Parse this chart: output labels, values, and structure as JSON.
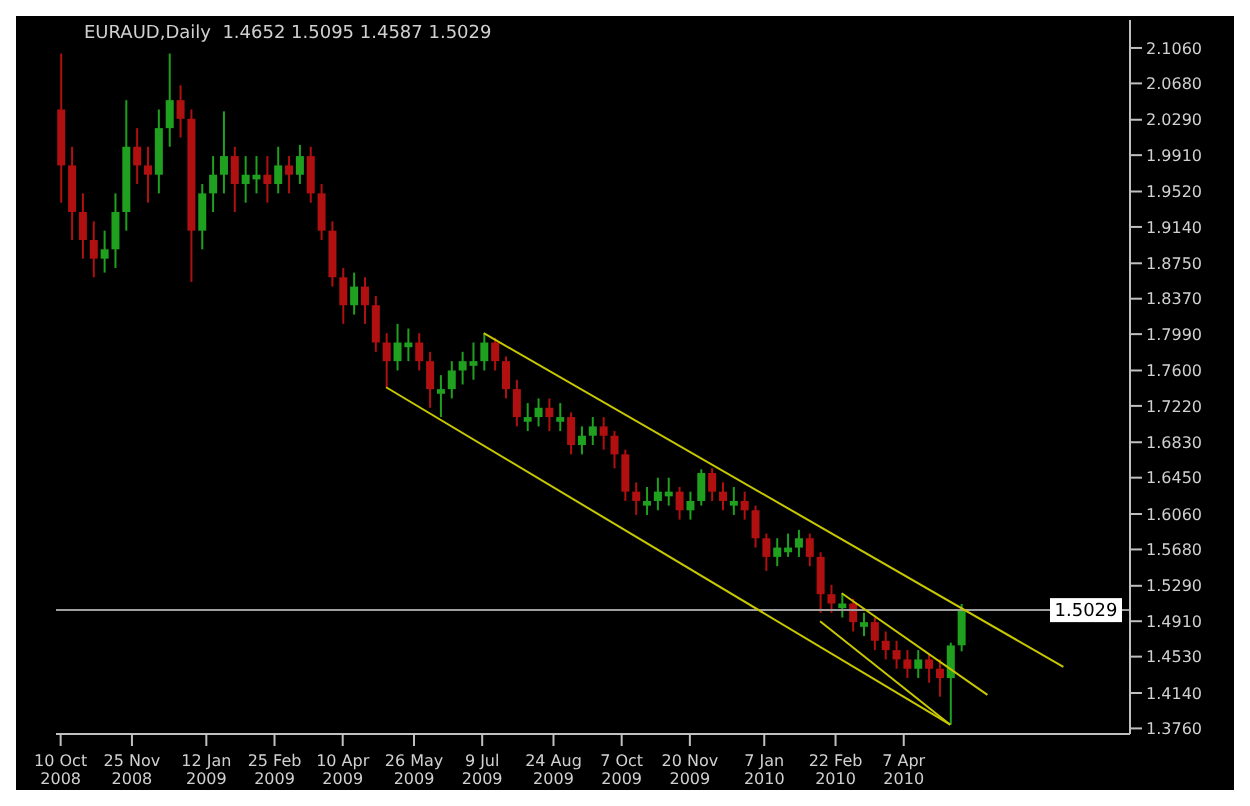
{
  "chart_data": {
    "type": "candlestick",
    "title": "EURAUD,Daily  1.4652 1.5095 1.4587 1.5029",
    "x": [
      "2008-10-10",
      "2008-10-17",
      "2008-10-24",
      "2008-10-31",
      "2008-11-07",
      "2008-11-14",
      "2008-11-21",
      "2008-11-28",
      "2008-12-05",
      "2008-12-12",
      "2008-12-19",
      "2008-12-26",
      "2009-01-02",
      "2009-01-09",
      "2009-01-16",
      "2009-01-23",
      "2009-01-30",
      "2009-02-06",
      "2009-02-13",
      "2009-02-20",
      "2009-02-27",
      "2009-03-06",
      "2009-03-13",
      "2009-03-20",
      "2009-03-27",
      "2009-04-03",
      "2009-04-10",
      "2009-04-17",
      "2009-04-24",
      "2009-05-01",
      "2009-05-08",
      "2009-05-15",
      "2009-05-22",
      "2009-05-29",
      "2009-06-05",
      "2009-06-12",
      "2009-06-19",
      "2009-06-26",
      "2009-07-03",
      "2009-07-10",
      "2009-07-17",
      "2009-07-24",
      "2009-07-31",
      "2009-08-07",
      "2009-08-14",
      "2009-08-21",
      "2009-08-28",
      "2009-09-04",
      "2009-09-11",
      "2009-09-18",
      "2009-09-25",
      "2009-10-02",
      "2009-10-09",
      "2009-10-16",
      "2009-10-23",
      "2009-10-30",
      "2009-11-06",
      "2009-11-13",
      "2009-11-20",
      "2009-11-27",
      "2009-12-04",
      "2009-12-11",
      "2009-12-18",
      "2009-12-25",
      "2010-01-01",
      "2010-01-08",
      "2010-01-15",
      "2010-01-22",
      "2010-01-29",
      "2010-02-05",
      "2010-02-12",
      "2010-02-19",
      "2010-02-26",
      "2010-03-05",
      "2010-03-12",
      "2010-03-19",
      "2010-03-26",
      "2010-04-02",
      "2010-04-09",
      "2010-04-16",
      "2010-04-23",
      "2010-04-30",
      "2010-05-07",
      "2010-05-14"
    ],
    "ohlc": [
      [
        2.04,
        2.1,
        1.94,
        1.98
      ],
      [
        1.98,
        2.0,
        1.9,
        1.93
      ],
      [
        1.93,
        1.95,
        1.88,
        1.9
      ],
      [
        1.9,
        1.92,
        1.86,
        1.88
      ],
      [
        1.88,
        1.91,
        1.865,
        1.89
      ],
      [
        1.89,
        1.95,
        1.87,
        1.93
      ],
      [
        1.93,
        2.05,
        1.91,
        2.0
      ],
      [
        2.0,
        2.02,
        1.96,
        1.98
      ],
      [
        1.98,
        2.0,
        1.94,
        1.97
      ],
      [
        1.97,
        2.04,
        1.95,
        2.02
      ],
      [
        2.02,
        2.1,
        2.0,
        2.05
      ],
      [
        2.05,
        2.066,
        2.01,
        2.03
      ],
      [
        2.03,
        2.04,
        1.855,
        1.91
      ],
      [
        1.91,
        1.96,
        1.89,
        1.95
      ],
      [
        1.95,
        1.99,
        1.93,
        1.97
      ],
      [
        1.97,
        2.038,
        1.95,
        1.99
      ],
      [
        1.99,
        2.0,
        1.93,
        1.96
      ],
      [
        1.96,
        1.99,
        1.94,
        1.97
      ],
      [
        1.965,
        1.99,
        1.95,
        1.97
      ],
      [
        1.97,
        1.99,
        1.94,
        1.96
      ],
      [
        1.96,
        2.0,
        1.95,
        1.98
      ],
      [
        1.98,
        1.99,
        1.95,
        1.97
      ],
      [
        1.97,
        2.002,
        1.96,
        1.99
      ],
      [
        1.99,
        2.0,
        1.94,
        1.95
      ],
      [
        1.95,
        1.96,
        1.9,
        1.91
      ],
      [
        1.91,
        1.92,
        1.85,
        1.86
      ],
      [
        1.86,
        1.87,
        1.81,
        1.83
      ],
      [
        1.83,
        1.865,
        1.82,
        1.85
      ],
      [
        1.85,
        1.86,
        1.81,
        1.83
      ],
      [
        1.83,
        1.84,
        1.78,
        1.79
      ],
      [
        1.79,
        1.8,
        1.742,
        1.77
      ],
      [
        1.77,
        1.81,
        1.76,
        1.79
      ],
      [
        1.785,
        1.805,
        1.77,
        1.79
      ],
      [
        1.79,
        1.8,
        1.76,
        1.77
      ],
      [
        1.77,
        1.78,
        1.72,
        1.74
      ],
      [
        1.735,
        1.755,
        1.71,
        1.74
      ],
      [
        1.74,
        1.77,
        1.73,
        1.76
      ],
      [
        1.76,
        1.78,
        1.745,
        1.77
      ],
      [
        1.765,
        1.79,
        1.75,
        1.77
      ],
      [
        1.77,
        1.8,
        1.76,
        1.79
      ],
      [
        1.79,
        1.795,
        1.76,
        1.77
      ],
      [
        1.77,
        1.775,
        1.73,
        1.74
      ],
      [
        1.74,
        1.75,
        1.7,
        1.71
      ],
      [
        1.705,
        1.725,
        1.695,
        1.71
      ],
      [
        1.71,
        1.73,
        1.7,
        1.72
      ],
      [
        1.72,
        1.73,
        1.695,
        1.71
      ],
      [
        1.705,
        1.725,
        1.695,
        1.71
      ],
      [
        1.71,
        1.715,
        1.67,
        1.68
      ],
      [
        1.68,
        1.7,
        1.67,
        1.69
      ],
      [
        1.69,
        1.71,
        1.68,
        1.7
      ],
      [
        1.7,
        1.71,
        1.675,
        1.69
      ],
      [
        1.69,
        1.695,
        1.655,
        1.67
      ],
      [
        1.67,
        1.675,
        1.62,
        1.63
      ],
      [
        1.63,
        1.64,
        1.605,
        1.62
      ],
      [
        1.615,
        1.635,
        1.605,
        1.62
      ],
      [
        1.62,
        1.645,
        1.61,
        1.63
      ],
      [
        1.625,
        1.645,
        1.615,
        1.63
      ],
      [
        1.63,
        1.635,
        1.6,
        1.61
      ],
      [
        1.61,
        1.63,
        1.6,
        1.62
      ],
      [
        1.62,
        1.654,
        1.615,
        1.65
      ],
      [
        1.65,
        1.655,
        1.62,
        1.63
      ],
      [
        1.63,
        1.64,
        1.61,
        1.62
      ],
      [
        1.615,
        1.635,
        1.605,
        1.62
      ],
      [
        1.62,
        1.63,
        1.6,
        1.61
      ],
      [
        1.61,
        1.615,
        1.57,
        1.58
      ],
      [
        1.58,
        1.585,
        1.545,
        1.56
      ],
      [
        1.56,
        1.58,
        1.55,
        1.57
      ],
      [
        1.565,
        1.585,
        1.56,
        1.57
      ],
      [
        1.57,
        1.589,
        1.56,
        1.58
      ],
      [
        1.58,
        1.585,
        1.55,
        1.56
      ],
      [
        1.56,
        1.565,
        1.5,
        1.52
      ],
      [
        1.52,
        1.53,
        1.5,
        1.51
      ],
      [
        1.505,
        1.521,
        1.495,
        1.51
      ],
      [
        1.51,
        1.515,
        1.48,
        1.49
      ],
      [
        1.485,
        1.5,
        1.475,
        1.49
      ],
      [
        1.49,
        1.495,
        1.46,
        1.47
      ],
      [
        1.47,
        1.48,
        1.45,
        1.46
      ],
      [
        1.46,
        1.47,
        1.44,
        1.45
      ],
      [
        1.45,
        1.46,
        1.43,
        1.44
      ],
      [
        1.44,
        1.46,
        1.43,
        1.45
      ],
      [
        1.45,
        1.455,
        1.425,
        1.44
      ],
      [
        1.44,
        1.45,
        1.41,
        1.43
      ],
      [
        1.43,
        1.468,
        1.38,
        1.465
      ],
      [
        1.4652,
        1.5095,
        1.4587,
        1.5029
      ]
    ],
    "colors": [
      "#b01010",
      "#b01010",
      "#b01010",
      "#b01010",
      "#1fa01f",
      "#1fa01f",
      "#1fa01f",
      "#b01010",
      "#b01010",
      "#1fa01f",
      "#1fa01f",
      "#b01010",
      "#b01010",
      "#1fa01f",
      "#1fa01f",
      "#1fa01f",
      "#b01010",
      "#1fa01f",
      "#1fa01f",
      "#b01010",
      "#1fa01f",
      "#b01010",
      "#1fa01f",
      "#b01010",
      "#b01010",
      "#b01010",
      "#b01010",
      "#1fa01f",
      "#b01010",
      "#b01010",
      "#b01010",
      "#1fa01f",
      "#1fa01f",
      "#b01010",
      "#b01010",
      "#1fa01f",
      "#1fa01f",
      "#1fa01f",
      "#1fa01f",
      "#1fa01f",
      "#b01010",
      "#b01010",
      "#b01010",
      "#1fa01f",
      "#1fa01f",
      "#b01010",
      "#1fa01f",
      "#b01010",
      "#1fa01f",
      "#1fa01f",
      "#b01010",
      "#b01010",
      "#b01010",
      "#b01010",
      "#1fa01f",
      "#1fa01f",
      "#1fa01f",
      "#b01010",
      "#1fa01f",
      "#1fa01f",
      "#b01010",
      "#b01010",
      "#1fa01f",
      "#b01010",
      "#b01010",
      "#b01010",
      "#1fa01f",
      "#1fa01f",
      "#1fa01f",
      "#b01010",
      "#b01010",
      "#b01010",
      "#1fa01f",
      "#b01010",
      "#1fa01f",
      "#b01010",
      "#b01010",
      "#b01010",
      "#b01010",
      "#1fa01f",
      "#b01010",
      "#b01010",
      "#1fa01f",
      "#1fa01f"
    ],
    "series": [
      {
        "type": "line",
        "x": [
          "2009-07-10",
          "2010-07-19"
        ],
        "values": [
          1.8,
          1.442
        ],
        "color": "#c8c800"
      },
      {
        "type": "line",
        "x": [
          "2009-05-08",
          "2010-05-07"
        ],
        "values": [
          1.742,
          1.38
        ],
        "color": "#c8c800"
      },
      {
        "type": "line",
        "x": [
          "2010-02-26",
          "2010-05-31"
        ],
        "values": [
          1.521,
          1.412
        ],
        "color": "#c8c800"
      },
      {
        "type": "line",
        "x": [
          "2010-02-12",
          "2010-05-07"
        ],
        "values": [
          1.491,
          1.38
        ],
        "color": "#c8c800"
      }
    ],
    "ref_lines": [
      {
        "axis": "y",
        "value": 1.5029,
        "label": "1.5029",
        "color": "#a0a0a0"
      }
    ],
    "xlim": [
      "2008-10-07",
      "2010-08-31"
    ],
    "xticks": [
      {
        "value": "2008-10-10",
        "label": "10 Oct 2008"
      },
      {
        "value": "2008-11-25",
        "label": "25 Nov 2008"
      },
      {
        "value": "2009-01-12",
        "label": "12 Jan 2009"
      },
      {
        "value": "2009-02-25",
        "label": "25 Feb 2009"
      },
      {
        "value": "2009-04-10",
        "label": "10 Apr 2009"
      },
      {
        "value": "2009-05-26",
        "label": "26 May 2009"
      },
      {
        "value": "2009-07-09",
        "label": "9 Jul 2009"
      },
      {
        "value": "2009-08-24",
        "label": "24 Aug 2009"
      },
      {
        "value": "2009-10-07",
        "label": "7 Oct 2009"
      },
      {
        "value": "2009-11-20",
        "label": "20 Nov 2009"
      },
      {
        "value": "2010-01-07",
        "label": "7 Jan 2010"
      },
      {
        "value": "2010-02-22",
        "label": "22 Feb 2010"
      },
      {
        "value": "2010-04-07",
        "label": "7 Apr 2010"
      }
    ],
    "ylim": [
      1.37,
      2.136
    ],
    "yticks": [
      {
        "value": 2.106,
        "label": "2.1060"
      },
      {
        "value": 2.068,
        "label": "2.0680"
      },
      {
        "value": 2.029,
        "label": "2.0290"
      },
      {
        "value": 1.991,
        "label": "1.9910"
      },
      {
        "value": 1.952,
        "label": "1.9520"
      },
      {
        "value": 1.914,
        "label": "1.9140"
      },
      {
        "value": 1.875,
        "label": "1.8750"
      },
      {
        "value": 1.837,
        "label": "1.8370"
      },
      {
        "value": 1.799,
        "label": "1.7990"
      },
      {
        "value": 1.76,
        "label": "1.7600"
      },
      {
        "value": 1.722,
        "label": "1.7220"
      },
      {
        "value": 1.683,
        "label": "1.6830"
      },
      {
        "value": 1.645,
        "label": "1.6450"
      },
      {
        "value": 1.606,
        "label": "1.6060"
      },
      {
        "value": 1.568,
        "label": "1.5680"
      },
      {
        "value": 1.529,
        "label": "1.5290"
      },
      {
        "value": 1.491,
        "label": "1.4910"
      },
      {
        "value": 1.453,
        "label": "1.4530"
      },
      {
        "value": 1.414,
        "label": "1.4140"
      },
      {
        "value": 1.376,
        "label": "1.3760"
      }
    ]
  }
}
